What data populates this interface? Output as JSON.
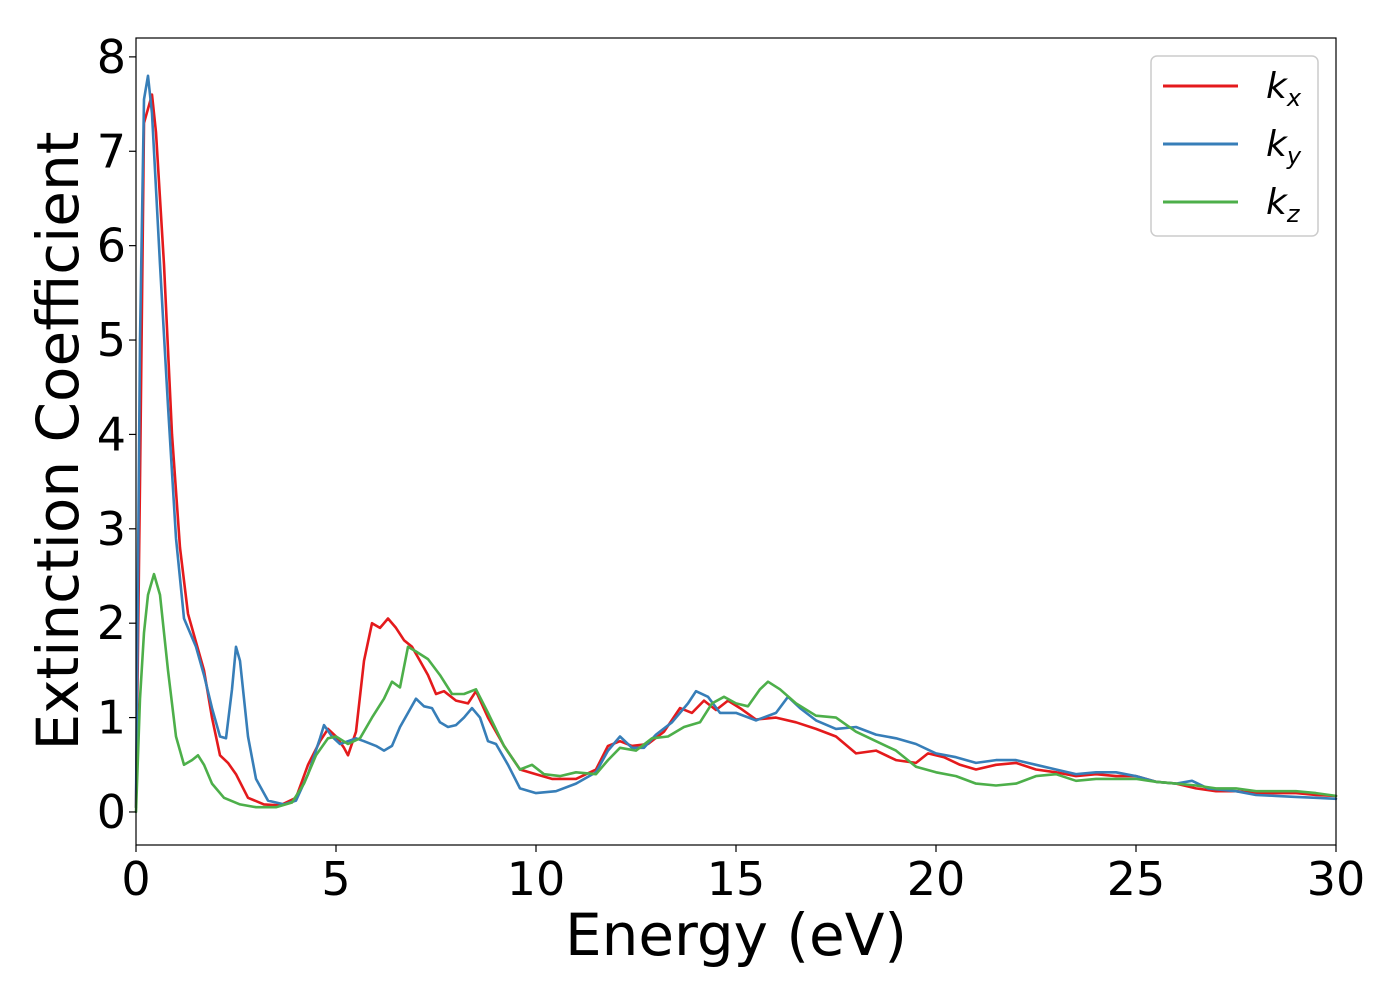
{
  "chart_data": {
    "type": "line",
    "title": "",
    "xlabel": "Energy (eV)",
    "ylabel": "Extinction Coefficient",
    "xlim": [
      0,
      30
    ],
    "ylim": [
      -0.35,
      8.2
    ],
    "xticks": [
      0,
      5,
      10,
      15,
      20,
      25,
      30
    ],
    "yticks": [
      0,
      1,
      2,
      3,
      4,
      5,
      6,
      7,
      8
    ],
    "grid": false,
    "legend_position": "top-right",
    "series": [
      {
        "name": "k_x",
        "label_base": "k",
        "label_sub": "x",
        "color": "#e41a1c",
        "points": [
          [
            0,
            0.05
          ],
          [
            0.1,
            3.5
          ],
          [
            0.2,
            7.3
          ],
          [
            0.3,
            7.45
          ],
          [
            0.4,
            7.6
          ],
          [
            0.5,
            7.2
          ],
          [
            0.7,
            5.8
          ],
          [
            0.9,
            4.0
          ],
          [
            1.1,
            2.8
          ],
          [
            1.3,
            2.1
          ],
          [
            1.5,
            1.8
          ],
          [
            1.7,
            1.5
          ],
          [
            1.9,
            1.0
          ],
          [
            2.1,
            0.6
          ],
          [
            2.3,
            0.52
          ],
          [
            2.5,
            0.4
          ],
          [
            2.8,
            0.15
          ],
          [
            3.2,
            0.08
          ],
          [
            3.6,
            0.07
          ],
          [
            4.0,
            0.15
          ],
          [
            4.3,
            0.5
          ],
          [
            4.6,
            0.75
          ],
          [
            4.8,
            0.88
          ],
          [
            5.0,
            0.8
          ],
          [
            5.2,
            0.68
          ],
          [
            5.3,
            0.6
          ],
          [
            5.5,
            0.85
          ],
          [
            5.7,
            1.6
          ],
          [
            5.9,
            2.0
          ],
          [
            6.1,
            1.95
          ],
          [
            6.3,
            2.05
          ],
          [
            6.5,
            1.95
          ],
          [
            6.7,
            1.82
          ],
          [
            6.9,
            1.75
          ],
          [
            7.1,
            1.6
          ],
          [
            7.3,
            1.45
          ],
          [
            7.5,
            1.25
          ],
          [
            7.7,
            1.28
          ],
          [
            8.0,
            1.18
          ],
          [
            8.3,
            1.15
          ],
          [
            8.5,
            1.28
          ],
          [
            8.8,
            1.0
          ],
          [
            9.2,
            0.7
          ],
          [
            9.6,
            0.45
          ],
          [
            10.0,
            0.4
          ],
          [
            10.4,
            0.35
          ],
          [
            11.0,
            0.35
          ],
          [
            11.5,
            0.45
          ],
          [
            11.8,
            0.7
          ],
          [
            12.1,
            0.75
          ],
          [
            12.4,
            0.7
          ],
          [
            12.8,
            0.72
          ],
          [
            13.2,
            0.85
          ],
          [
            13.6,
            1.1
          ],
          [
            13.9,
            1.05
          ],
          [
            14.2,
            1.18
          ],
          [
            14.5,
            1.08
          ],
          [
            14.8,
            1.18
          ],
          [
            15.1,
            1.1
          ],
          [
            15.5,
            0.98
          ],
          [
            16.0,
            1.0
          ],
          [
            16.5,
            0.95
          ],
          [
            17.0,
            0.88
          ],
          [
            17.5,
            0.8
          ],
          [
            18.0,
            0.62
          ],
          [
            18.5,
            0.65
          ],
          [
            19.0,
            0.55
          ],
          [
            19.5,
            0.52
          ],
          [
            19.8,
            0.62
          ],
          [
            20.2,
            0.58
          ],
          [
            20.6,
            0.5
          ],
          [
            21.0,
            0.45
          ],
          [
            21.5,
            0.5
          ],
          [
            22.0,
            0.52
          ],
          [
            22.5,
            0.45
          ],
          [
            23.0,
            0.42
          ],
          [
            23.5,
            0.38
          ],
          [
            24.0,
            0.4
          ],
          [
            24.5,
            0.38
          ],
          [
            25.0,
            0.38
          ],
          [
            25.5,
            0.32
          ],
          [
            26.0,
            0.3
          ],
          [
            26.5,
            0.25
          ],
          [
            27.0,
            0.22
          ],
          [
            27.5,
            0.22
          ],
          [
            28.0,
            0.2
          ],
          [
            28.5,
            0.2
          ],
          [
            29.0,
            0.2
          ],
          [
            29.5,
            0.18
          ],
          [
            30.0,
            0.17
          ]
        ]
      },
      {
        "name": "k_y",
        "label_base": "k",
        "label_sub": "y",
        "color": "#377eb8",
        "points": [
          [
            0,
            0.05
          ],
          [
            0.1,
            5.0
          ],
          [
            0.2,
            7.55
          ],
          [
            0.3,
            7.8
          ],
          [
            0.4,
            7.4
          ],
          [
            0.6,
            5.8
          ],
          [
            0.8,
            4.3
          ],
          [
            1.0,
            2.9
          ],
          [
            1.2,
            2.05
          ],
          [
            1.5,
            1.75
          ],
          [
            1.7,
            1.45
          ],
          [
            1.9,
            1.1
          ],
          [
            2.1,
            0.8
          ],
          [
            2.25,
            0.78
          ],
          [
            2.4,
            1.3
          ],
          [
            2.5,
            1.75
          ],
          [
            2.6,
            1.6
          ],
          [
            2.8,
            0.8
          ],
          [
            3.0,
            0.35
          ],
          [
            3.3,
            0.12
          ],
          [
            3.7,
            0.08
          ],
          [
            4.0,
            0.12
          ],
          [
            4.3,
            0.4
          ],
          [
            4.6,
            0.78
          ],
          [
            4.7,
            0.92
          ],
          [
            4.9,
            0.8
          ],
          [
            5.1,
            0.72
          ],
          [
            5.3,
            0.75
          ],
          [
            5.5,
            0.78
          ],
          [
            5.7,
            0.75
          ],
          [
            6.0,
            0.7
          ],
          [
            6.2,
            0.65
          ],
          [
            6.4,
            0.7
          ],
          [
            6.6,
            0.9
          ],
          [
            6.8,
            1.05
          ],
          [
            7.0,
            1.2
          ],
          [
            7.2,
            1.12
          ],
          [
            7.4,
            1.1
          ],
          [
            7.6,
            0.95
          ],
          [
            7.8,
            0.9
          ],
          [
            8.0,
            0.92
          ],
          [
            8.2,
            1.0
          ],
          [
            8.4,
            1.1
          ],
          [
            8.6,
            1.0
          ],
          [
            8.8,
            0.75
          ],
          [
            9.0,
            0.72
          ],
          [
            9.3,
            0.5
          ],
          [
            9.6,
            0.25
          ],
          [
            10.0,
            0.2
          ],
          [
            10.5,
            0.22
          ],
          [
            11.0,
            0.3
          ],
          [
            11.5,
            0.42
          ],
          [
            11.8,
            0.65
          ],
          [
            12.1,
            0.8
          ],
          [
            12.4,
            0.68
          ],
          [
            12.7,
            0.68
          ],
          [
            13.0,
            0.82
          ],
          [
            13.4,
            0.95
          ],
          [
            13.8,
            1.15
          ],
          [
            14.0,
            1.28
          ],
          [
            14.3,
            1.22
          ],
          [
            14.6,
            1.05
          ],
          [
            15.0,
            1.05
          ],
          [
            15.5,
            0.97
          ],
          [
            16.0,
            1.05
          ],
          [
            16.3,
            1.22
          ],
          [
            16.6,
            1.1
          ],
          [
            17.0,
            0.97
          ],
          [
            17.5,
            0.88
          ],
          [
            18.0,
            0.9
          ],
          [
            18.5,
            0.82
          ],
          [
            19.0,
            0.78
          ],
          [
            19.5,
            0.72
          ],
          [
            20.0,
            0.62
          ],
          [
            20.5,
            0.58
          ],
          [
            21.0,
            0.52
          ],
          [
            21.5,
            0.55
          ],
          [
            22.0,
            0.55
          ],
          [
            22.5,
            0.5
          ],
          [
            23.0,
            0.45
          ],
          [
            23.5,
            0.4
          ],
          [
            24.0,
            0.42
          ],
          [
            24.5,
            0.42
          ],
          [
            25.0,
            0.38
          ],
          [
            25.5,
            0.32
          ],
          [
            26.0,
            0.3
          ],
          [
            26.4,
            0.33
          ],
          [
            26.8,
            0.25
          ],
          [
            27.5,
            0.22
          ],
          [
            28.0,
            0.18
          ],
          [
            28.5,
            0.17
          ],
          [
            29.0,
            0.16
          ],
          [
            29.5,
            0.15
          ],
          [
            30.0,
            0.14
          ]
        ]
      },
      {
        "name": "k_z",
        "label_base": "k",
        "label_sub": "z",
        "color": "#4daf4a",
        "points": [
          [
            0,
            0.0
          ],
          [
            0.1,
            1.2
          ],
          [
            0.2,
            1.9
          ],
          [
            0.3,
            2.3
          ],
          [
            0.45,
            2.52
          ],
          [
            0.6,
            2.3
          ],
          [
            0.8,
            1.5
          ],
          [
            1.0,
            0.8
          ],
          [
            1.2,
            0.5
          ],
          [
            1.4,
            0.55
          ],
          [
            1.55,
            0.6
          ],
          [
            1.7,
            0.5
          ],
          [
            1.9,
            0.3
          ],
          [
            2.2,
            0.15
          ],
          [
            2.6,
            0.08
          ],
          [
            3.0,
            0.05
          ],
          [
            3.5,
            0.05
          ],
          [
            3.9,
            0.1
          ],
          [
            4.2,
            0.3
          ],
          [
            4.5,
            0.6
          ],
          [
            4.8,
            0.78
          ],
          [
            5.0,
            0.8
          ],
          [
            5.3,
            0.72
          ],
          [
            5.6,
            0.78
          ],
          [
            5.9,
            1.0
          ],
          [
            6.2,
            1.2
          ],
          [
            6.4,
            1.38
          ],
          [
            6.6,
            1.32
          ],
          [
            6.8,
            1.75
          ],
          [
            7.0,
            1.7
          ],
          [
            7.3,
            1.62
          ],
          [
            7.6,
            1.45
          ],
          [
            7.9,
            1.25
          ],
          [
            8.2,
            1.25
          ],
          [
            8.5,
            1.3
          ],
          [
            8.8,
            1.05
          ],
          [
            9.2,
            0.7
          ],
          [
            9.6,
            0.45
          ],
          [
            9.9,
            0.5
          ],
          [
            10.2,
            0.4
          ],
          [
            10.6,
            0.38
          ],
          [
            11.0,
            0.42
          ],
          [
            11.5,
            0.4
          ],
          [
            11.8,
            0.55
          ],
          [
            12.1,
            0.68
          ],
          [
            12.5,
            0.65
          ],
          [
            12.9,
            0.78
          ],
          [
            13.3,
            0.8
          ],
          [
            13.7,
            0.9
          ],
          [
            14.1,
            0.95
          ],
          [
            14.4,
            1.15
          ],
          [
            14.7,
            1.22
          ],
          [
            15.0,
            1.15
          ],
          [
            15.3,
            1.12
          ],
          [
            15.6,
            1.3
          ],
          [
            15.8,
            1.38
          ],
          [
            16.1,
            1.3
          ],
          [
            16.5,
            1.15
          ],
          [
            17.0,
            1.02
          ],
          [
            17.5,
            1.0
          ],
          [
            18.0,
            0.85
          ],
          [
            18.5,
            0.75
          ],
          [
            19.0,
            0.65
          ],
          [
            19.5,
            0.48
          ],
          [
            20.0,
            0.42
          ],
          [
            20.5,
            0.38
          ],
          [
            21.0,
            0.3
          ],
          [
            21.5,
            0.28
          ],
          [
            22.0,
            0.3
          ],
          [
            22.5,
            0.38
          ],
          [
            23.0,
            0.4
          ],
          [
            23.5,
            0.33
          ],
          [
            24.0,
            0.35
          ],
          [
            24.5,
            0.35
          ],
          [
            25.0,
            0.35
          ],
          [
            25.5,
            0.32
          ],
          [
            26.0,
            0.3
          ],
          [
            26.5,
            0.28
          ],
          [
            27.0,
            0.25
          ],
          [
            27.5,
            0.25
          ],
          [
            28.0,
            0.22
          ],
          [
            28.5,
            0.22
          ],
          [
            29.0,
            0.22
          ],
          [
            29.5,
            0.2
          ],
          [
            30.0,
            0.17
          ]
        ]
      }
    ]
  }
}
